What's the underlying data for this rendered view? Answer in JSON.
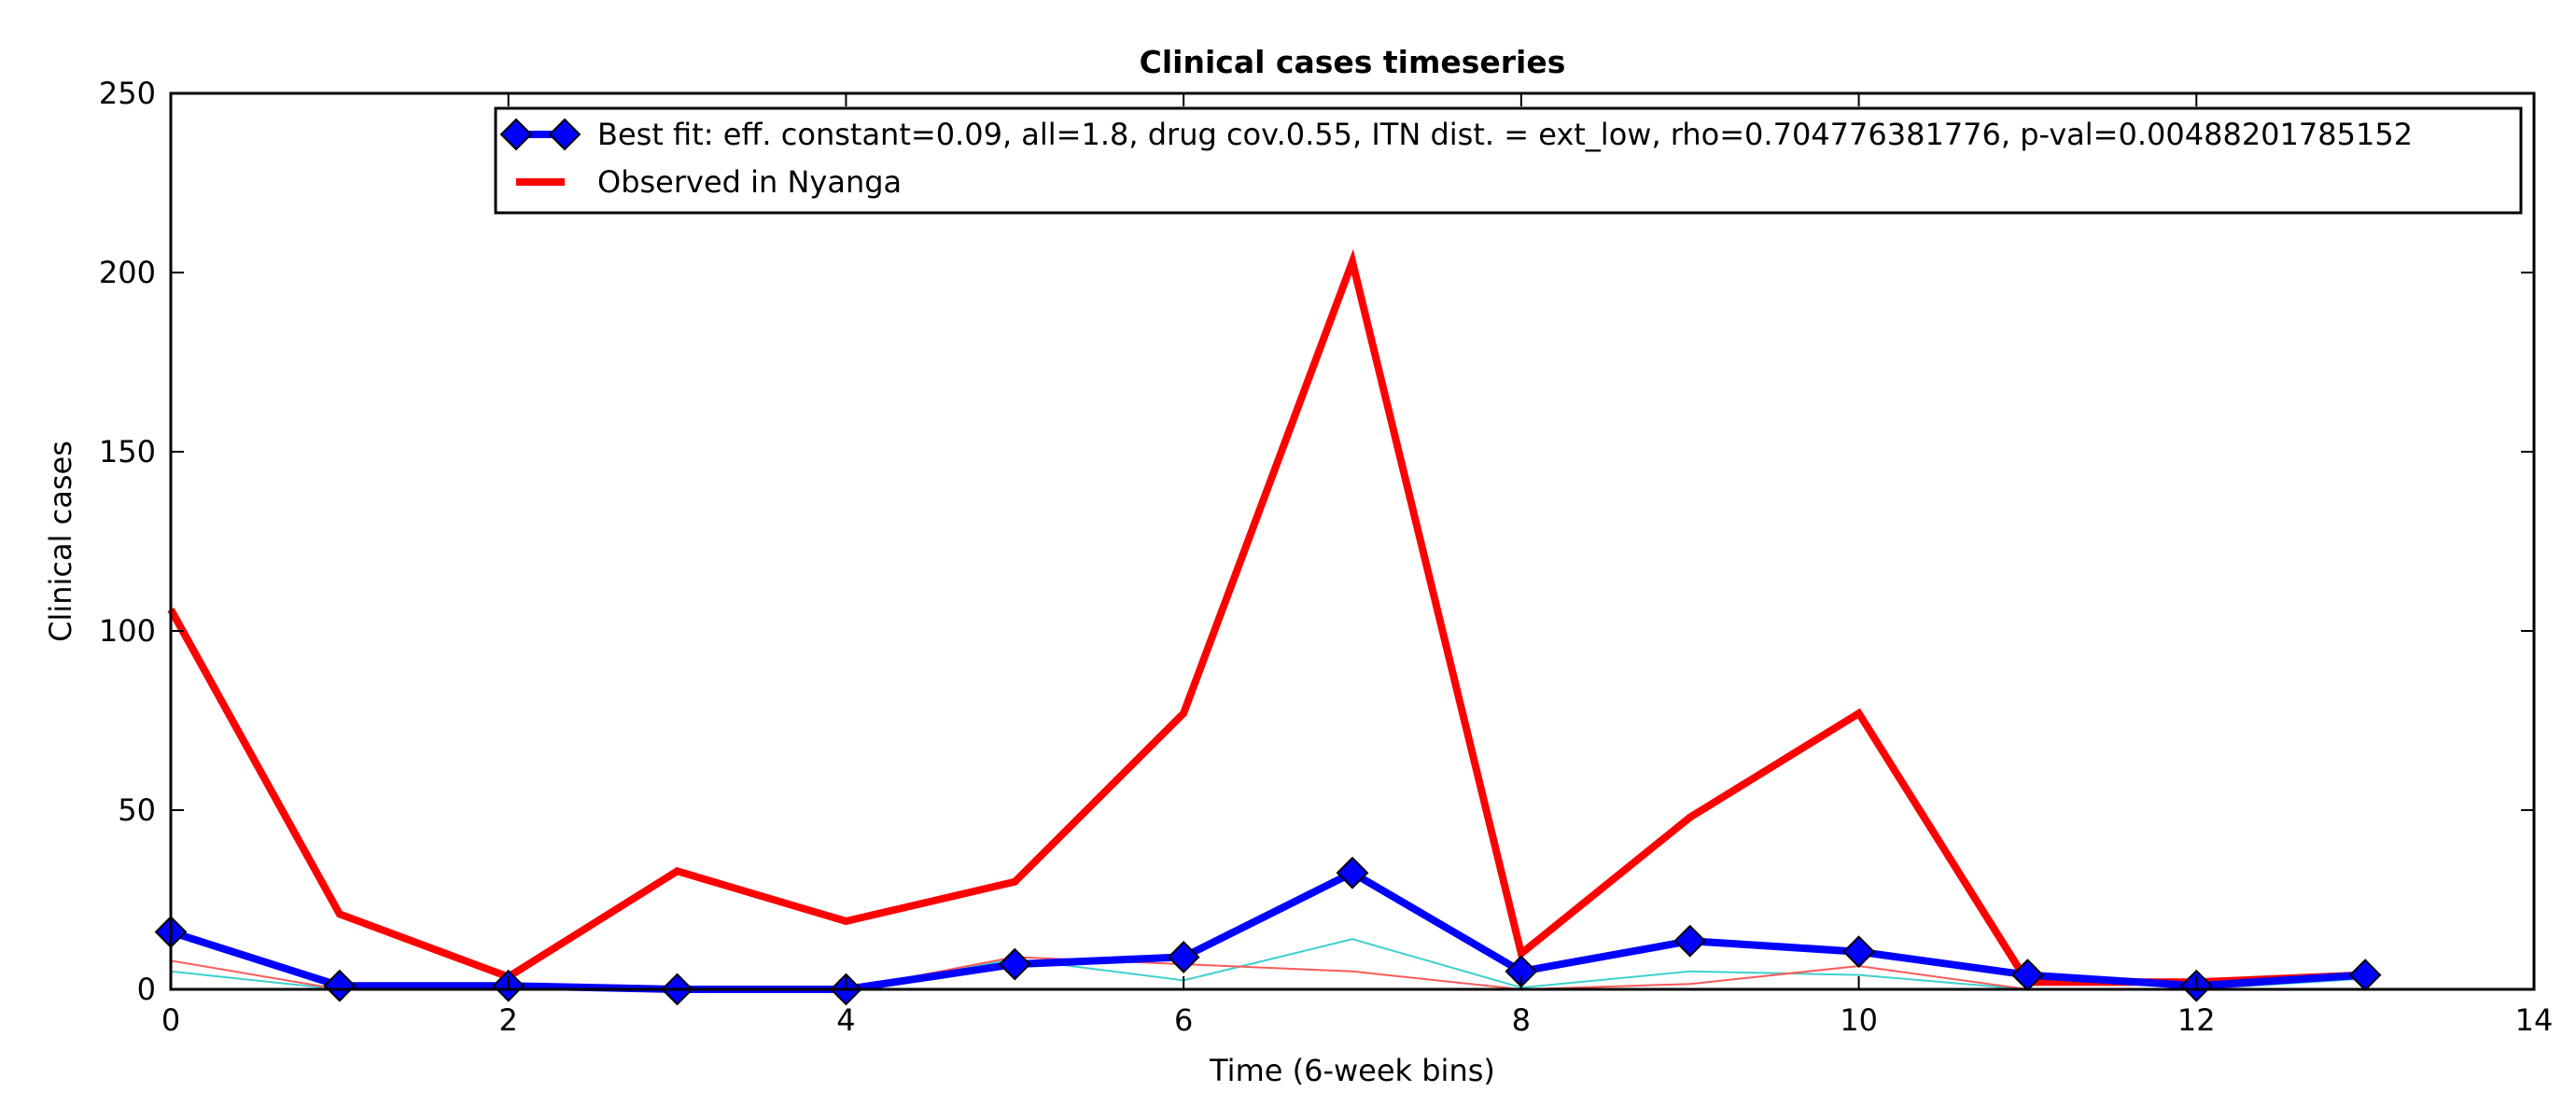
{
  "chart_data": {
    "type": "line",
    "title": "Clinical cases timeseries",
    "xlabel": "Time (6-week bins)",
    "ylabel": "Clinical cases",
    "xlim": [
      0,
      14
    ],
    "ylim": [
      0,
      250
    ],
    "xticks": [
      0,
      2,
      4,
      6,
      8,
      10,
      12,
      14
    ],
    "yticks": [
      0,
      50,
      100,
      150,
      200,
      250
    ],
    "grid": false,
    "legend_position": "top-right",
    "x": [
      0,
      1,
      2,
      3,
      4,
      5,
      6,
      7,
      8,
      9,
      10,
      11,
      12,
      13
    ],
    "series": [
      {
        "name": "Best fit: eff. constant=0.09, all=1.8, drug cov.0.55, ITN dist. = ext_low, rho=0.704776381776, p-val=0.00488201785152",
        "color": "#0000ff",
        "marker": "diamond",
        "style": "thick",
        "values": [
          16,
          1,
          1,
          0,
          0,
          7,
          9,
          32.5,
          5,
          13.5,
          10.5,
          4,
          1,
          4
        ]
      },
      {
        "name": "Observed in Nyanga",
        "color": "#ff0000",
        "marker": "none",
        "style": "thick",
        "values": [
          106,
          21,
          3.5,
          33,
          19,
          30,
          77,
          203,
          10,
          48,
          77,
          2,
          2,
          4
        ]
      },
      {
        "name": "",
        "color": "#ff5a5a",
        "marker": "none",
        "style": "thin",
        "values": [
          8,
          0,
          0,
          0,
          0,
          9,
          7,
          5,
          0,
          1.5,
          6.5,
          0,
          0,
          3.5
        ]
      },
      {
        "name": "",
        "color": "#3fd0d0",
        "marker": "none",
        "style": "thin",
        "values": [
          5,
          0,
          0.5,
          0,
          0,
          8.5,
          2.5,
          14,
          0.5,
          5,
          4,
          0,
          0,
          3
        ]
      }
    ]
  }
}
